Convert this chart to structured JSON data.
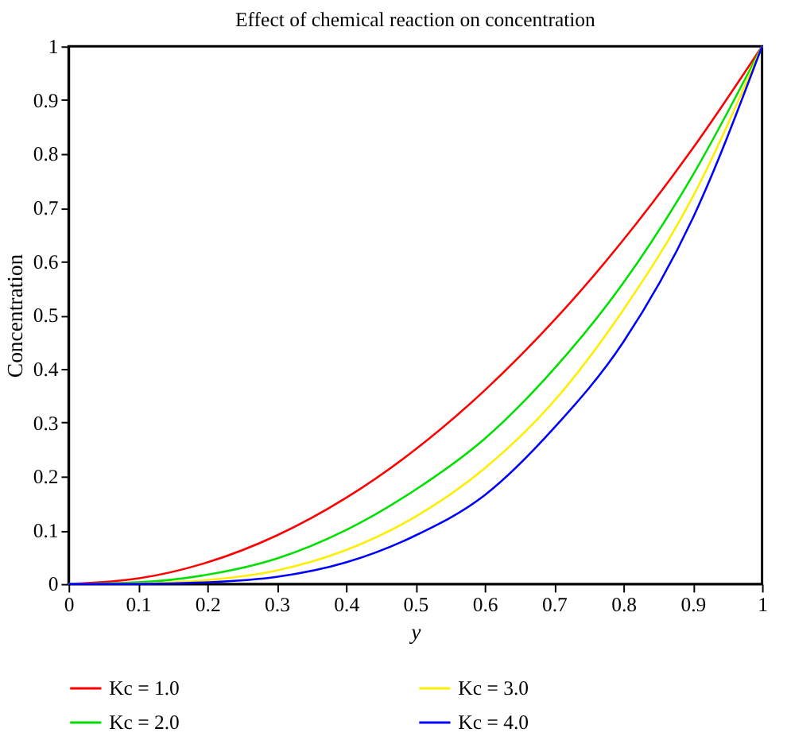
{
  "chart_data": {
    "type": "line",
    "title": "Effect of  chemical reaction on concentration",
    "xlabel": "y",
    "ylabel": "Concentration",
    "x": [
      0,
      0.1,
      0.2,
      0.3,
      0.4,
      0.5,
      0.6,
      0.7,
      0.8,
      0.9,
      1
    ],
    "xlim": [
      0,
      1
    ],
    "ylim": [
      0,
      1
    ],
    "xticks": [
      0,
      0.1,
      0.2,
      0.3,
      0.4,
      0.5,
      0.6,
      0.7,
      0.8,
      0.9,
      1
    ],
    "yticks": [
      0,
      0.1,
      0.2,
      0.3,
      0.4,
      0.5,
      0.6,
      0.7,
      0.8,
      0.9,
      1
    ],
    "grid": false,
    "legend": "bottom",
    "marker": "none",
    "line_style": "solid",
    "series": [
      {
        "name": "Kc = 1.0",
        "color": "#ff0000",
        "values": [
          0,
          0.01,
          0.04,
          0.09,
          0.16,
          0.25,
          0.36,
          0.49,
          0.64,
          0.81,
          1
        ]
      },
      {
        "name": "Kc = 2.0",
        "color": "#00e000",
        "values": [
          0,
          0.003,
          0.017,
          0.047,
          0.1,
          0.175,
          0.27,
          0.4,
          0.56,
          0.76,
          1
        ]
      },
      {
        "name": "Kc = 3.0",
        "color": "#ffee00",
        "values": [
          0,
          0.001,
          0.007,
          0.025,
          0.063,
          0.125,
          0.215,
          0.34,
          0.51,
          0.72,
          1
        ]
      },
      {
        "name": "Kc = 4.0",
        "color": "#0000ff",
        "values": [
          0,
          0,
          0.003,
          0.013,
          0.04,
          0.09,
          0.165,
          0.29,
          0.45,
          0.68,
          1
        ]
      }
    ]
  }
}
